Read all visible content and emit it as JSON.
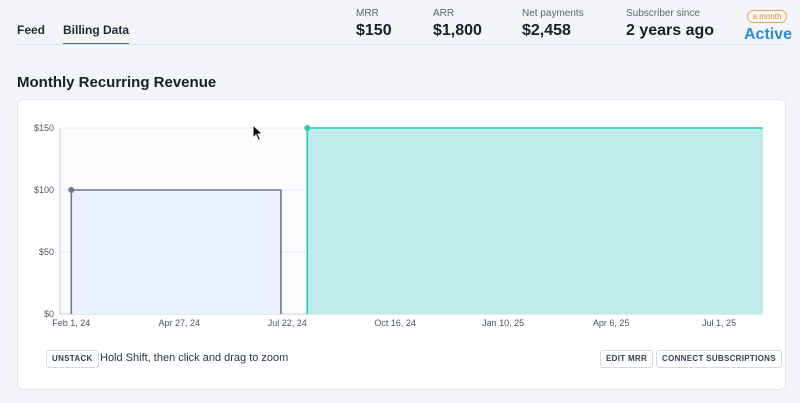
{
  "tabs": [
    {
      "label": "Feed"
    },
    {
      "label": "Billing Data"
    }
  ],
  "metrics": [
    {
      "label": "MRR",
      "value": "$150"
    },
    {
      "label": "ARR",
      "value": "$1,800"
    },
    {
      "label": "Net payments",
      "value": "$2,458"
    },
    {
      "label": "Subscriber since",
      "value": "2 years ago"
    }
  ],
  "subscription": {
    "badge": "a month",
    "status": "Active"
  },
  "section": {
    "title": "Monthly Recurring Revenue"
  },
  "controls": {
    "unstack_label": "UNSTACK",
    "zoom_hint": "Hold Shift, then click and drag to zoom",
    "edit_mrr_label": "EDIT MRR",
    "connect_label": "CONNECT SUBSCRIPTIONS"
  },
  "chart_data": {
    "type": "area",
    "title": "",
    "xlabel": "",
    "ylabel": "",
    "y_ticks": [
      "$150",
      "$100",
      "$50",
      "$0"
    ],
    "x_ticks": [
      "Feb 1, 24",
      "Apr 27, 24",
      "Jul 22, 24",
      "Oct 16, 24",
      "Jan 10, 25",
      "Apr 6, 25",
      "Jul 1, 25"
    ],
    "ylim": [
      0,
      150
    ],
    "xlim": [
      "2024-01-23",
      "2025-08-05"
    ],
    "series": [
      {
        "color": "#6b7a8a",
        "fill": "#eaf1fd",
        "points": [
          [
            "2024-02-01",
            100
          ],
          [
            "2024-07-17",
            100
          ]
        ]
      },
      {
        "color": "#2ec4b6",
        "fill": "#bdece9",
        "points": [
          [
            "2024-08-07",
            150
          ],
          [
            "2025-08-05",
            150
          ]
        ]
      }
    ]
  }
}
